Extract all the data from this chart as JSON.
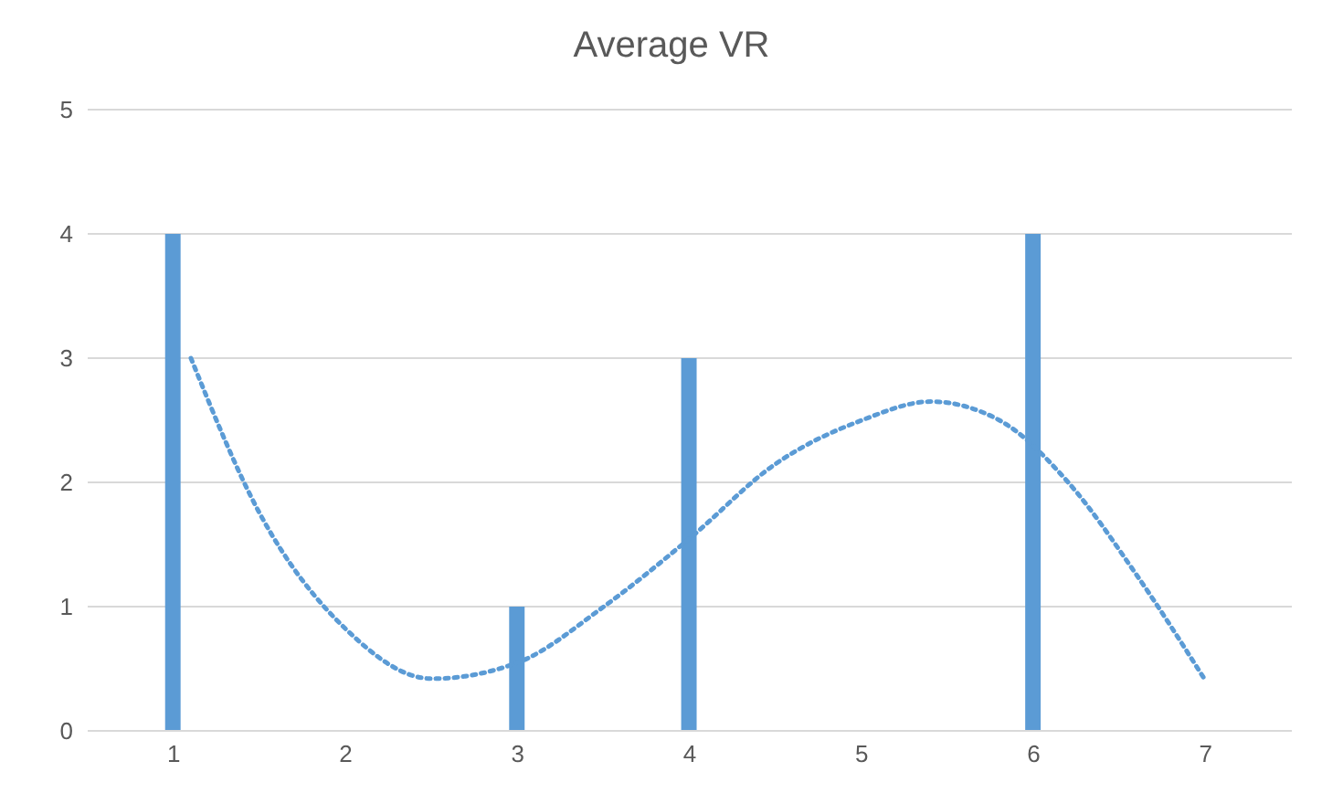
{
  "chart_data": {
    "type": "bar",
    "title": "Average VR",
    "x": [
      1,
      2,
      3,
      4,
      5,
      6,
      7
    ],
    "xlim": [
      0.5,
      7.5
    ],
    "xticks": [
      1,
      2,
      3,
      4,
      5,
      6,
      7
    ],
    "ylim": [
      0,
      5
    ],
    "yticks": [
      0,
      1,
      2,
      3,
      4,
      5
    ],
    "grid": "y",
    "series": [
      {
        "color": "#5b9bd5",
        "values": [
          4,
          0,
          1,
          3,
          0,
          4,
          0
        ]
      },
      {
        "type": "line",
        "color": "#5b9bd5",
        "line_style": "dotted",
        "marker": "none",
        "x": [
          1.1,
          1.5,
          2,
          2.5,
          3,
          3.5,
          4,
          4.5,
          5,
          5.4,
          5.8,
          6.2,
          6.6,
          7
        ],
        "values": [
          3.0,
          1.75,
          0.82,
          0.42,
          0.55,
          1.0,
          1.55,
          2.15,
          2.5,
          2.65,
          2.5,
          2.0,
          1.25,
          0.4
        ]
      }
    ]
  }
}
